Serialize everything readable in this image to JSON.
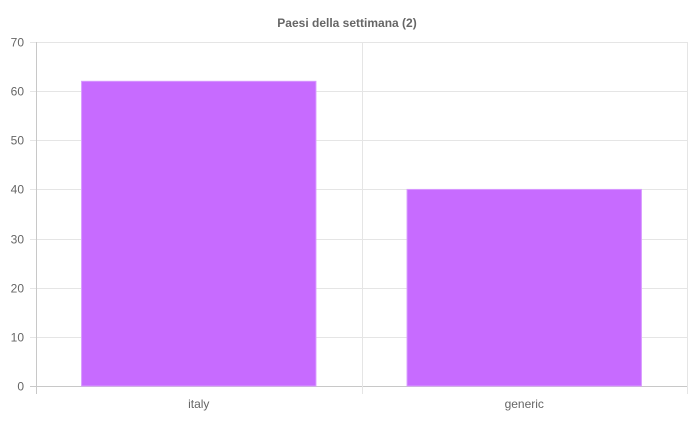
{
  "chart_data": {
    "type": "bar",
    "title": "Paesi della settimana (2)",
    "categories": [
      "italy",
      "generic"
    ],
    "values": [
      62,
      40
    ],
    "ylim": [
      0,
      70
    ],
    "yticks": [
      0,
      10,
      20,
      30,
      40,
      50,
      60,
      70
    ],
    "grid": true,
    "legend": "none",
    "colors": {
      "bar": "#c76bff",
      "bar_border": "#d899ff",
      "grid": "#e5e5e5",
      "axis": "#c8c8c8",
      "text": "#666666"
    }
  }
}
